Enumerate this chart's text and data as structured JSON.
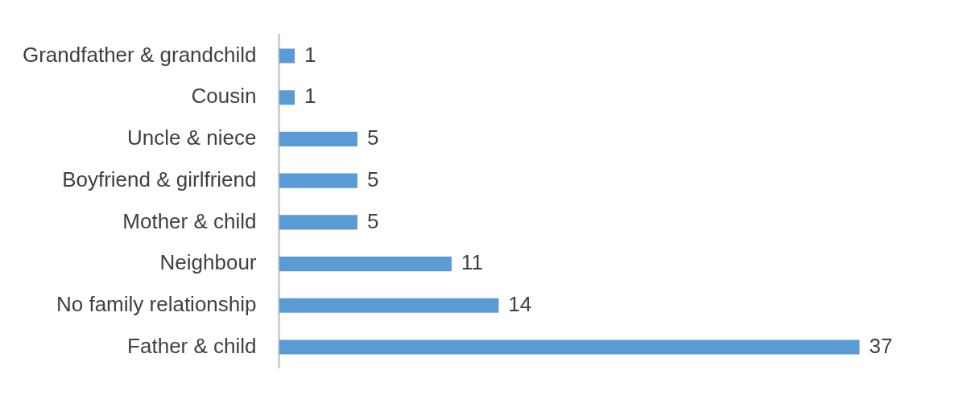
{
  "chart_data": {
    "type": "bar",
    "orientation": "horizontal",
    "categories": [
      "Grandfather & grandchild",
      "Cousin",
      "Uncle & niece",
      "Boyfriend & girlfriend",
      "Mother & child",
      "Neighbour",
      "No family relationship",
      "Father & child"
    ],
    "values": [
      1,
      1,
      5,
      5,
      5,
      11,
      14,
      37
    ],
    "color": "#5b9bd5",
    "data_labels": true
  }
}
